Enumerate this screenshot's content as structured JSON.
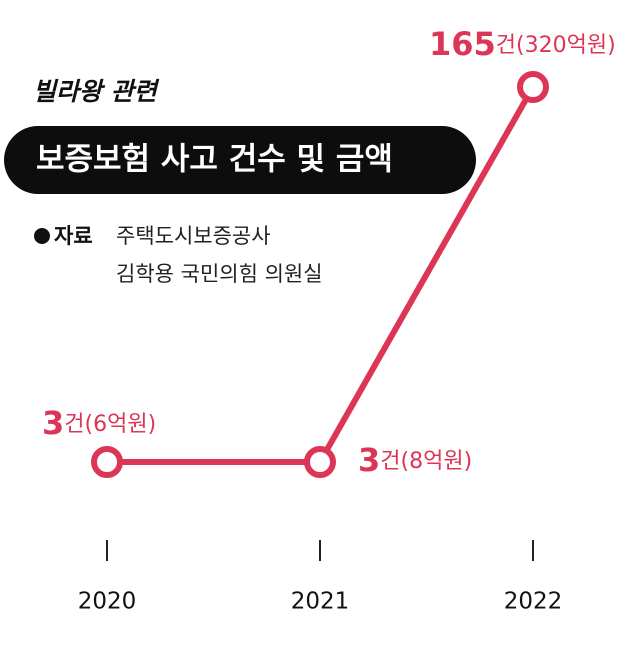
{
  "chart_data": {
    "type": "line",
    "kicker": "빌라왕 관련",
    "title": "보증보험 사고 건수 및 금액",
    "source": {
      "label": "자료",
      "lines": [
        "주택도시보증공사",
        "김학용 국민의힘 의원실"
      ]
    },
    "categories": [
      "2020",
      "2021",
      "2022"
    ],
    "values": [
      3,
      3,
      165
    ],
    "value_labels": [
      "3건(6억원)",
      "3건(8억원)",
      "165건(320억원)"
    ],
    "color": "#dc3555"
  }
}
